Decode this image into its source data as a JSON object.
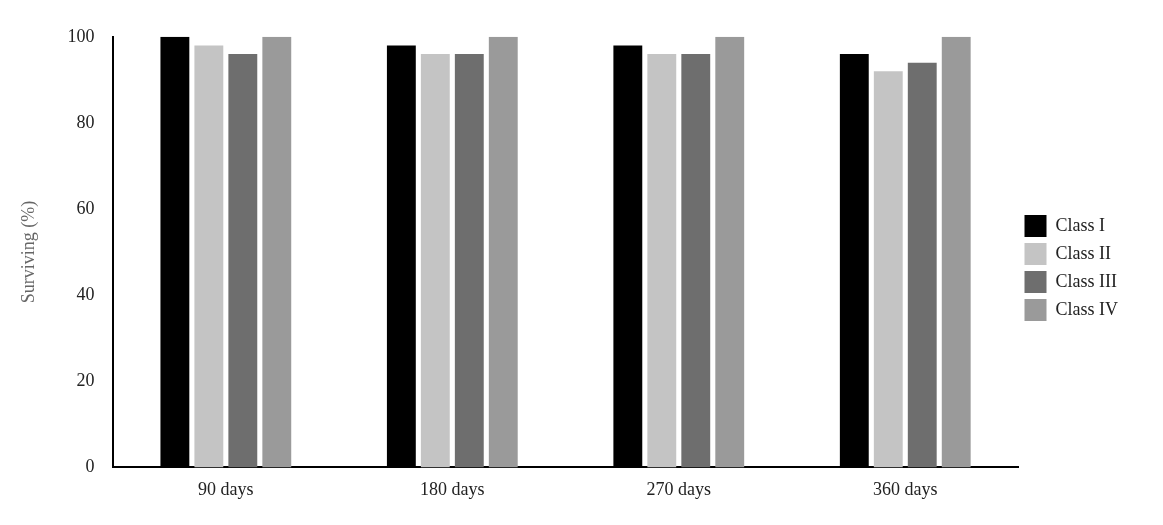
{
  "chart_data": {
    "type": "bar",
    "ylabel": "Surviving (%)",
    "categories": [
      "90 days",
      "180 days",
      "270 days",
      "360 days"
    ],
    "series": [
      {
        "name": "Class I",
        "color": "#000000",
        "values": [
          100,
          98,
          98,
          96
        ]
      },
      {
        "name": "Class II",
        "color": "#c4c4c4",
        "values": [
          98,
          96,
          96,
          92
        ]
      },
      {
        "name": "Class III",
        "color": "#6e6e6e",
        "values": [
          96,
          96,
          96,
          94
        ]
      },
      {
        "name": "Class IV",
        "color": "#9a9a9a",
        "values": [
          100,
          100,
          100,
          100
        ]
      }
    ],
    "ylim": [
      0,
      100
    ],
    "yticks": [
      0,
      20,
      40,
      60,
      80,
      100
    ],
    "grid": false,
    "legend": "right"
  }
}
